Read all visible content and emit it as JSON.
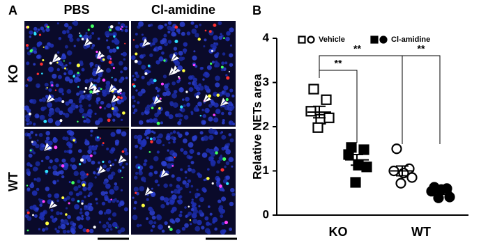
{
  "panel_a": {
    "label": "A",
    "columns": [
      "PBS",
      "Cl-amidine"
    ],
    "rows": [
      "KO",
      "WT"
    ]
  },
  "chart_data": {
    "type": "dot",
    "panel_label": "B",
    "y_label": "Relative NETs area",
    "categories": [
      "KO",
      "WT"
    ],
    "markers": [
      "square",
      "circle"
    ],
    "ylim": [
      0,
      4
    ],
    "yticks": [
      0,
      1,
      2,
      3,
      4
    ],
    "series": [
      {
        "name": "Vehicle",
        "color": "#000000",
        "filled": false,
        "values": [
          [
            2.85,
            2.61,
            2.35,
            2.17,
            2.2,
            1.98
          ],
          [
            1.5,
            1.05,
            1.0,
            0.95,
            0.85,
            0.72
          ]
        ],
        "means": [
          2.33,
          1.0
        ],
        "sem": [
          0.13,
          0.11
        ]
      },
      {
        "name": "Cl-amidine",
        "color": "#000000",
        "filled": true,
        "values": [
          [
            1.53,
            1.48,
            1.37,
            1.13,
            1.09,
            0.74
          ],
          [
            0.63,
            0.6,
            0.54,
            0.58,
            0.41,
            0.39
          ]
        ],
        "means": [
          1.25,
          0.52
        ],
        "sem": [
          0.12,
          0.05
        ]
      }
    ],
    "annotations": [
      {
        "text": "**",
        "from": [
          0,
          0
        ],
        "to": [
          1,
          0
        ],
        "level": 1
      },
      {
        "text": "**",
        "from": [
          0,
          0
        ],
        "to": [
          0,
          1
        ],
        "level": 2
      },
      {
        "text": "**",
        "from": [
          0,
          1
        ],
        "to": [
          1,
          1
        ],
        "level": 2
      }
    ]
  }
}
